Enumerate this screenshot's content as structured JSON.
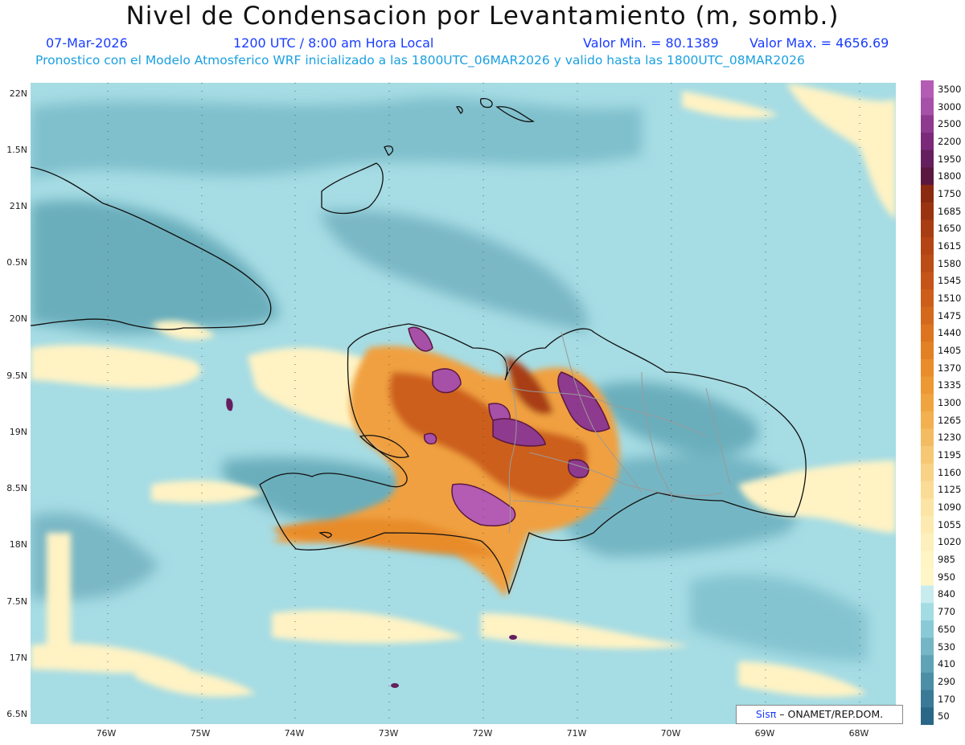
{
  "header": {
    "title": "Nivel de Condensacion por Levantamiento (m, somb.)",
    "date": "07-Mar-2026",
    "time": "1200 UTC / 8:00 am Hora Local",
    "min_label": "Valor Min. = 80.1389",
    "max_label": "Valor Max. = 4656.69",
    "model_info": "Pronostico con el Modelo Atmosferico WRF inicializado a las 1800UTC_06MAR2026 y valido hasta las  1800UTC_08MAR2026"
  },
  "axes": {
    "lat_labels": [
      "22N",
      "1.5N",
      "21N",
      "0.5N",
      "20N",
      "9.5N",
      "19N",
      "8.5N",
      "18N",
      "7.5N",
      "17N",
      "6.5N"
    ],
    "lon_labels": [
      "76W",
      "75W",
      "74W",
      "73W",
      "72W",
      "71W",
      "70W",
      "69W",
      "68W"
    ]
  },
  "colorbar": {
    "labels": [
      "3500",
      "3000",
      "2500",
      "2200",
      "1950",
      "1800",
      "1750",
      "1685",
      "1650",
      "1615",
      "1580",
      "1545",
      "1510",
      "1475",
      "1440",
      "1405",
      "1370",
      "1335",
      "1300",
      "1265",
      "1230",
      "1195",
      "1160",
      "1125",
      "1090",
      "1055",
      "1020",
      "985",
      "950",
      "840",
      "770",
      "650",
      "530",
      "410",
      "290",
      "170",
      "50"
    ],
    "colors": [
      "#b45cb4",
      "#a750a8",
      "#8e3a8e",
      "#7a2a78",
      "#661f5e",
      "#5a1840",
      "#8a2a10",
      "#9a3410",
      "#a83c12",
      "#b44414",
      "#bc4c16",
      "#c45418",
      "#cc5e1a",
      "#d4681c",
      "#dc7420",
      "#e28024",
      "#e88c2c",
      "#ec9834",
      "#f0a440",
      "#f2b050",
      "#f4bc62",
      "#f6c874",
      "#f8d286",
      "#fadc96",
      "#fce4a4",
      "#fdeab0",
      "#fef0bc",
      "#fef4c4",
      "#fff6c8",
      "#c8ecee",
      "#a4dce4",
      "#8acad6",
      "#74b6c6",
      "#60a2b6",
      "#4c8ea6",
      "#3a7a96",
      "#2a6686"
    ]
  },
  "credit": {
    "logo": "Sis",
    "pi": "π",
    "agency": "– ONAMET/REP.DOM."
  }
}
